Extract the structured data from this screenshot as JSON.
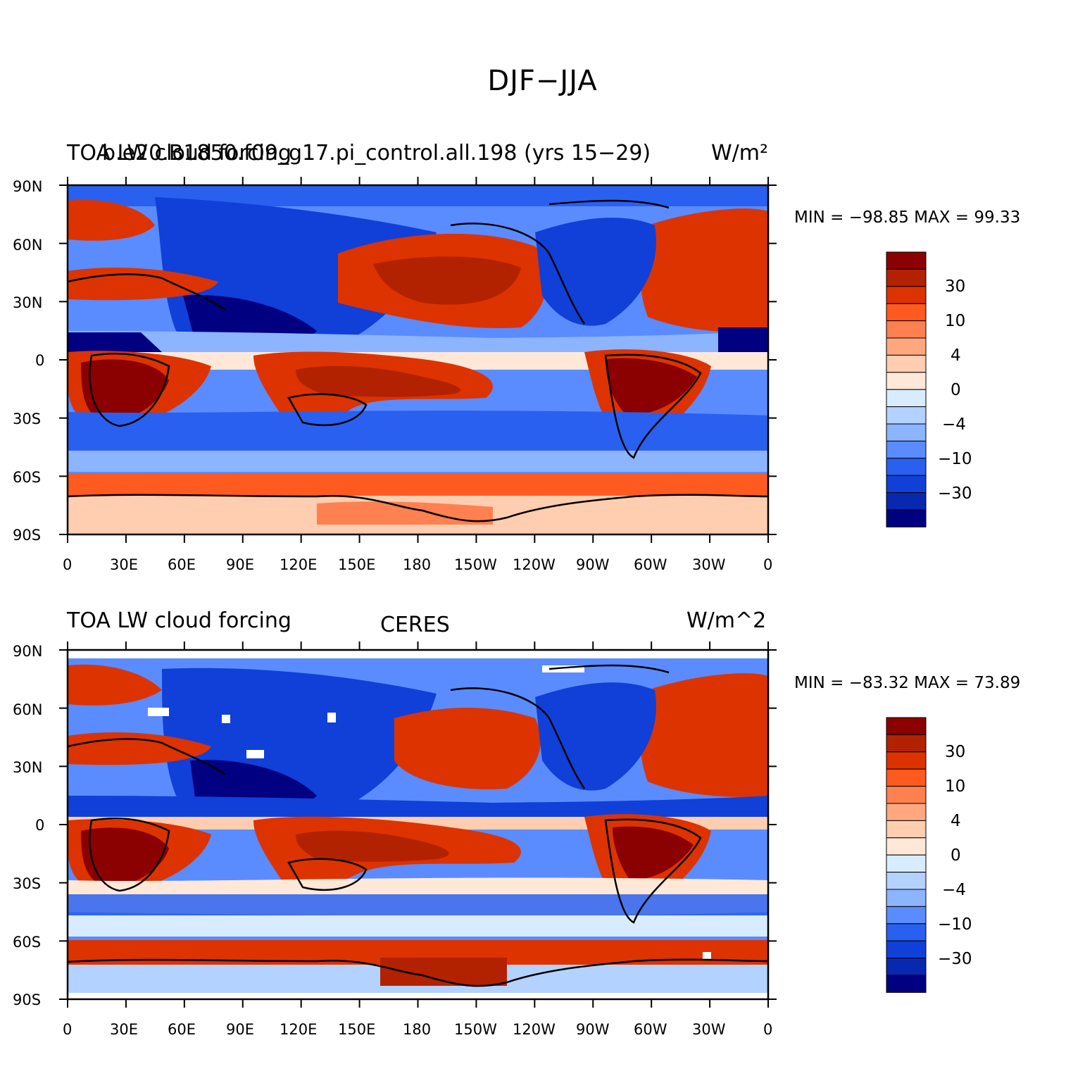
{
  "main_title": "DJF−JJA",
  "panels": [
    {
      "left_title": "TOA LW cloud forcing",
      "center_title": "b.e20.B1850.f09_g17.pi_control.all.198 (yrs 15−29)",
      "units": "W/m²",
      "min_max": "MIN = −98.85 MAX =   99.33"
    },
    {
      "left_title": "TOA LW cloud forcing",
      "center_title": "CERES",
      "units": "W/m^2",
      "min_max": "MIN = −83.32 MAX =   73.89"
    }
  ],
  "axes": {
    "lat_labels": [
      "90N",
      "60N",
      "30N",
      "0",
      "30S",
      "60S",
      "90S"
    ],
    "lon_labels": [
      "0",
      "30E",
      "60E",
      "90E",
      "120E",
      "150E",
      "180",
      "150W",
      "120W",
      "90W",
      "60W",
      "30W",
      "0"
    ]
  },
  "colorbar": {
    "labels": [
      "30",
      "10",
      "4",
      "0",
      "−4",
      "−10",
      "−30"
    ],
    "colors": [
      "#8b0000",
      "#b22200",
      "#dd3300",
      "#ff5a1f",
      "#ff8050",
      "#ffa880",
      "#ffcdb0",
      "#ffe8d8",
      "#d8ecff",
      "#b4d2ff",
      "#8cb4ff",
      "#5a8cff",
      "#2a60f0",
      "#1040d8",
      "#0828b0",
      "#000080"
    ]
  },
  "palette": {
    "dark_red": "#8b0000",
    "red": "#dd3300",
    "orange": "#ff5a1f",
    "pale_orange": "#ffcdb0",
    "cream": "#ffe8d8",
    "pale_blue": "#d8ecff",
    "light_blue": "#8cb4ff",
    "blue": "#2a60f0",
    "dark_blue": "#000080",
    "gap": "#ffffff"
  }
}
